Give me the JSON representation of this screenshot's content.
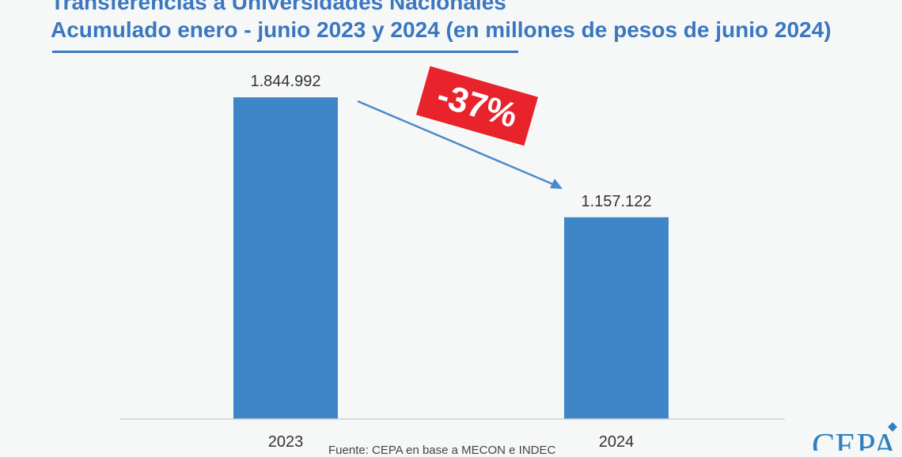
{
  "chart_data": {
    "type": "bar",
    "title": "Transferencias a Universidades Nacionales",
    "subtitle": "Acumulado enero - junio 2023 y 2024 (en millones de pesos de junio 2024)",
    "categories": [
      "2023",
      "2024"
    ],
    "values": [
      1844992,
      1157122
    ],
    "value_labels": [
      "1.844.992",
      "1.157.122"
    ],
    "ylim": [
      0,
      1995000
    ],
    "grid": false,
    "bar_color": "#3f86c8",
    "annotation": {
      "text": "-37%",
      "color": "#e8232b"
    }
  },
  "colors": {
    "title": "#3b77c0",
    "arrow": "#4a8acb",
    "background": "#f6f8f7"
  },
  "source": "Fuente: CEPA en base a MECON e INDEC",
  "logo": {
    "text": "CEPA"
  }
}
